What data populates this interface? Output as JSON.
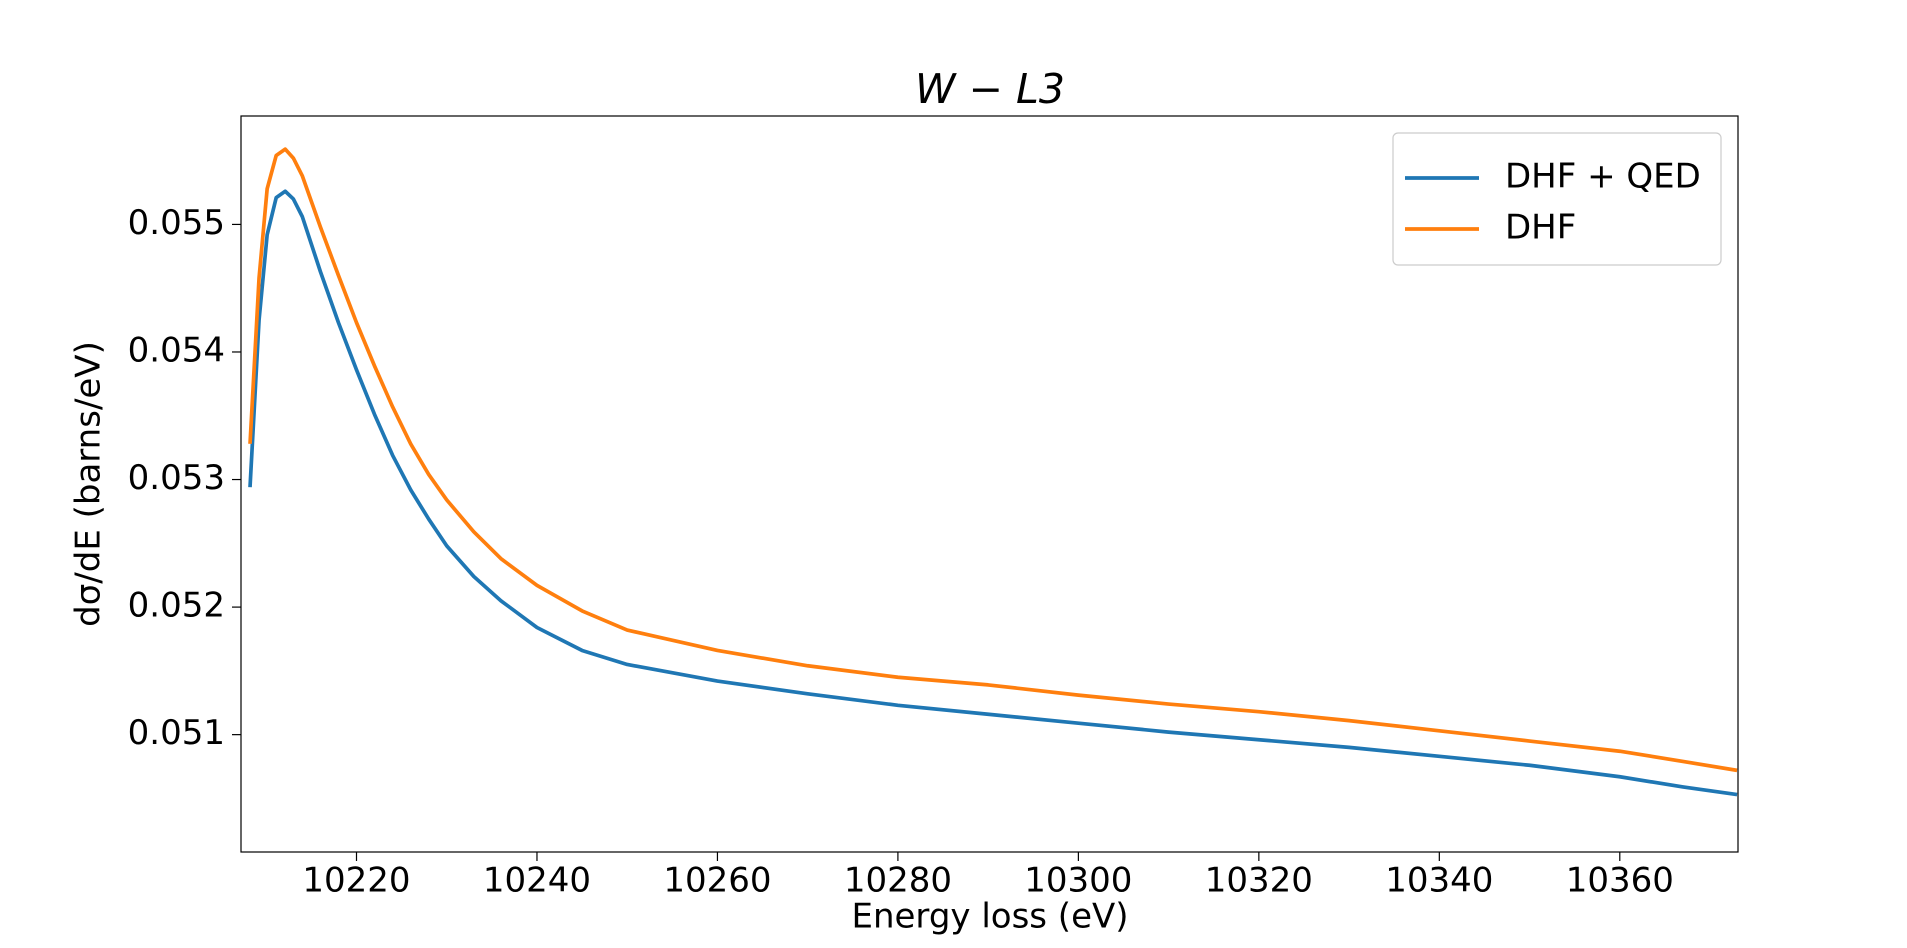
{
  "chart_data": {
    "type": "line",
    "title": "W − L3",
    "xlabel": "Energy loss (eV)",
    "ylabel": "dσ/dE (barns/eV)",
    "x": [
      10208.2,
      10209.2,
      10210.1,
      10211.1,
      10212.1,
      10213,
      10214,
      10216,
      10218,
      10220,
      10222,
      10224,
      10226,
      10228,
      10230,
      10233,
      10236,
      10240,
      10245,
      10250,
      10260,
      10270,
      10280,
      10290,
      10300,
      10310,
      10320,
      10330,
      10340,
      10350,
      10360,
      10367,
      10373
    ],
    "series": [
      {
        "name": "DHF + QED",
        "color": "#1f77b4",
        "values": [
          0.05294,
          0.05425,
          0.05492,
          0.05521,
          0.05526,
          0.0552,
          0.05506,
          0.05463,
          0.05423,
          0.05386,
          0.05351,
          0.05319,
          0.05292,
          0.05269,
          0.05248,
          0.05224,
          0.05205,
          0.05184,
          0.05166,
          0.05155,
          0.05142,
          0.05132,
          0.05123,
          0.05116,
          0.05109,
          0.05102,
          0.05096,
          0.0509,
          0.05083,
          0.05076,
          0.05067,
          0.05059,
          0.05053
        ]
      },
      {
        "name": "DHF",
        "color": "#ff7f0e",
        "values": [
          0.05328,
          0.05458,
          0.05528,
          0.05554,
          0.05559,
          0.05552,
          0.05538,
          0.05498,
          0.0546,
          0.05423,
          0.05389,
          0.05357,
          0.05328,
          0.05304,
          0.05284,
          0.05259,
          0.05238,
          0.05217,
          0.05197,
          0.05182,
          0.05166,
          0.05154,
          0.05145,
          0.05139,
          0.05131,
          0.05124,
          0.05118,
          0.05111,
          0.05103,
          0.05095,
          0.05087,
          0.05079,
          0.05072
        ]
      }
    ],
    "xlim": [
      10207.2,
      10373.1
    ],
    "xticks": [
      10220,
      10240,
      10260,
      10280,
      10300,
      10320,
      10340,
      10360
    ],
    "ylim": [
      0.05008,
      0.05585
    ],
    "yticks": [
      0.051,
      0.052,
      0.053,
      0.054,
      0.055
    ],
    "legend": "upper right",
    "grid": false
  }
}
